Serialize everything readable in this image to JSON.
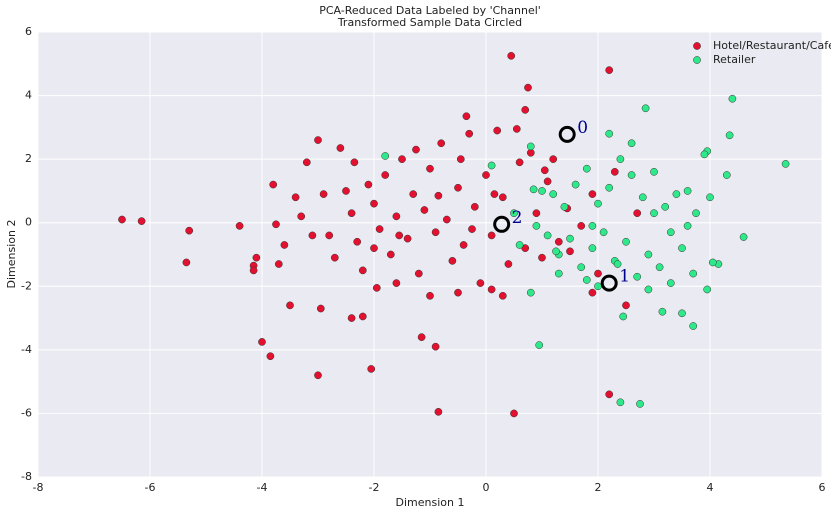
{
  "chart_data": {
    "type": "scatter",
    "title": "PCA-Reduced Data Labeled by 'Channel'",
    "subtitle": "Transformed Sample Data Circled",
    "x_label": "Dimension 1",
    "y_label": "Dimension 2",
    "xlim": [
      -8,
      6
    ],
    "ylim": [
      -8,
      6
    ],
    "xticks": [
      -8,
      -6,
      -4,
      -2,
      0,
      2,
      4,
      6
    ],
    "yticks": [
      -8,
      -6,
      -4,
      -2,
      0,
      2,
      4,
      6
    ],
    "grid": true,
    "legend": "upper right",
    "series": [
      {
        "name": "Hotel/Restaurant/Cafe",
        "color": "#e3112f",
        "x": [
          -6.5,
          -6.15,
          -5.35,
          -5.3,
          -4.4,
          -4.15,
          -4.15,
          -4.1,
          -4.0,
          -3.85,
          -3.8,
          -3.75,
          -3.7,
          -3.5,
          -3.4,
          -3.0,
          -2.95,
          -3.0,
          -2.4,
          -2.2,
          -2.05,
          -1.15,
          -0.9,
          -0.85,
          0.5,
          0.45,
          2.2,
          0.75,
          0.7,
          2.2,
          -0.35,
          -3.2,
          -3.3,
          -3.1,
          -2.8,
          -2.6,
          -2.5,
          -2.4,
          -2.3,
          -2.2,
          -2.1,
          -2.0,
          -1.9,
          -1.8,
          -1.7,
          -1.6,
          -1.5,
          -1.4,
          -1.3,
          -1.2,
          -1.1,
          -1.0,
          -0.9,
          -0.8,
          -0.7,
          -0.6,
          -0.5,
          -0.4,
          -0.3,
          -0.2,
          -0.1,
          0.0,
          0.1,
          0.2,
          0.3,
          0.4,
          0.6,
          0.7,
          0.8,
          0.9,
          1.0,
          1.1,
          1.2,
          1.3,
          1.5,
          1.7,
          1.9,
          2.0,
          2.3,
          2.5,
          2.7,
          1.9,
          -2.7,
          -2.9,
          -1.95,
          -1.0,
          -0.5,
          0.1,
          0.3,
          -1.6,
          -3.6,
          -2.35,
          -1.25,
          -0.45,
          0.55,
          -2.0,
          -1.55,
          -0.85,
          -0.25,
          0.15,
          1.05,
          1.45
        ],
        "values": [
          0.1,
          0.05,
          -1.25,
          -0.25,
          -0.1,
          -1.35,
          -1.5,
          -1.1,
          -3.75,
          -4.2,
          1.2,
          -0.05,
          -1.3,
          -2.6,
          0.8,
          2.6,
          -2.7,
          -4.8,
          -3.0,
          -2.95,
          -4.6,
          -3.6,
          -3.9,
          -5.95,
          -6.0,
          5.25,
          4.8,
          4.25,
          3.55,
          -5.4,
          3.35,
          1.9,
          0.2,
          -0.4,
          -0.4,
          2.35,
          1.0,
          0.3,
          -0.6,
          -1.5,
          1.2,
          0.6,
          -0.2,
          1.5,
          -1.0,
          0.2,
          2.0,
          -0.5,
          0.9,
          -1.6,
          0.4,
          1.7,
          -0.3,
          2.5,
          0.1,
          -1.2,
          1.1,
          -0.7,
          2.8,
          0.5,
          -1.9,
          1.5,
          -0.4,
          2.9,
          0.8,
          -1.3,
          1.9,
          -0.8,
          2.2,
          0.3,
          -1.1,
          1.3,
          2.0,
          -0.6,
          -0.9,
          -0.1,
          0.9,
          -1.6,
          1.6,
          -2.6,
          0.3,
          -2.2,
          -1.1,
          0.9,
          -2.05,
          -2.3,
          -2.2,
          -2.1,
          -2.3,
          -1.9,
          -0.7,
          1.9,
          2.3,
          2.0,
          2.95,
          -0.8,
          -0.4,
          0.85,
          -0.2,
          0.9,
          1.65,
          0.45
        ]
      },
      {
        "name": "Retailer",
        "color": "#2ee88a",
        "x": [
          5.35,
          4.4,
          4.35,
          4.3,
          4.6,
          4.15,
          4.05,
          3.95,
          2.85,
          3.7,
          3.5,
          2.75,
          2.4,
          0.95,
          3.15,
          2.45,
          -1.8,
          0.1,
          3.95,
          3.9,
          4.0,
          3.75,
          3.6,
          3.4,
          3.2,
          3.0,
          2.8,
          2.6,
          2.4,
          2.2,
          2.0,
          1.8,
          1.6,
          1.4,
          1.2,
          1.0,
          0.8,
          0.9,
          1.1,
          1.3,
          1.5,
          1.7,
          1.9,
          2.1,
          2.3,
          2.5,
          2.7,
          2.9,
          3.1,
          3.3,
          3.5,
          3.7,
          2.0,
          1.8,
          1.3,
          0.8,
          0.6,
          0.5,
          2.6,
          3.0,
          2.2,
          1.9,
          2.9,
          3.3,
          0.85,
          2.35,
          1.25,
          3.6
        ],
        "values": [
          1.85,
          3.9,
          2.75,
          1.5,
          -0.45,
          -1.3,
          -1.25,
          -2.1,
          3.6,
          -3.25,
          -2.85,
          -5.7,
          -5.65,
          -3.85,
          -2.8,
          -2.95,
          2.1,
          1.8,
          2.25,
          2.15,
          0.8,
          0.3,
          1.0,
          0.9,
          0.5,
          0.3,
          0.8,
          1.5,
          2.0,
          1.1,
          0.6,
          1.7,
          1.2,
          0.5,
          0.9,
          1.0,
          2.4,
          -0.1,
          -0.4,
          -1.0,
          -0.5,
          -1.4,
          -0.8,
          -0.3,
          -1.2,
          -0.6,
          -1.7,
          -1.0,
          -1.4,
          -0.3,
          -0.8,
          -1.6,
          -2.0,
          -1.8,
          -1.6,
          -2.2,
          -0.7,
          0.3,
          2.5,
          1.6,
          2.8,
          -0.1,
          -2.1,
          -1.9,
          1.05,
          -1.3,
          -0.9,
          -0.1
        ]
      }
    ],
    "annotations": [
      {
        "label": "0",
        "x": 1.45,
        "y": 2.78
      },
      {
        "label": "1",
        "x": 2.2,
        "y": -1.9
      },
      {
        "label": "2",
        "x": 0.28,
        "y": -0.05
      }
    ]
  }
}
